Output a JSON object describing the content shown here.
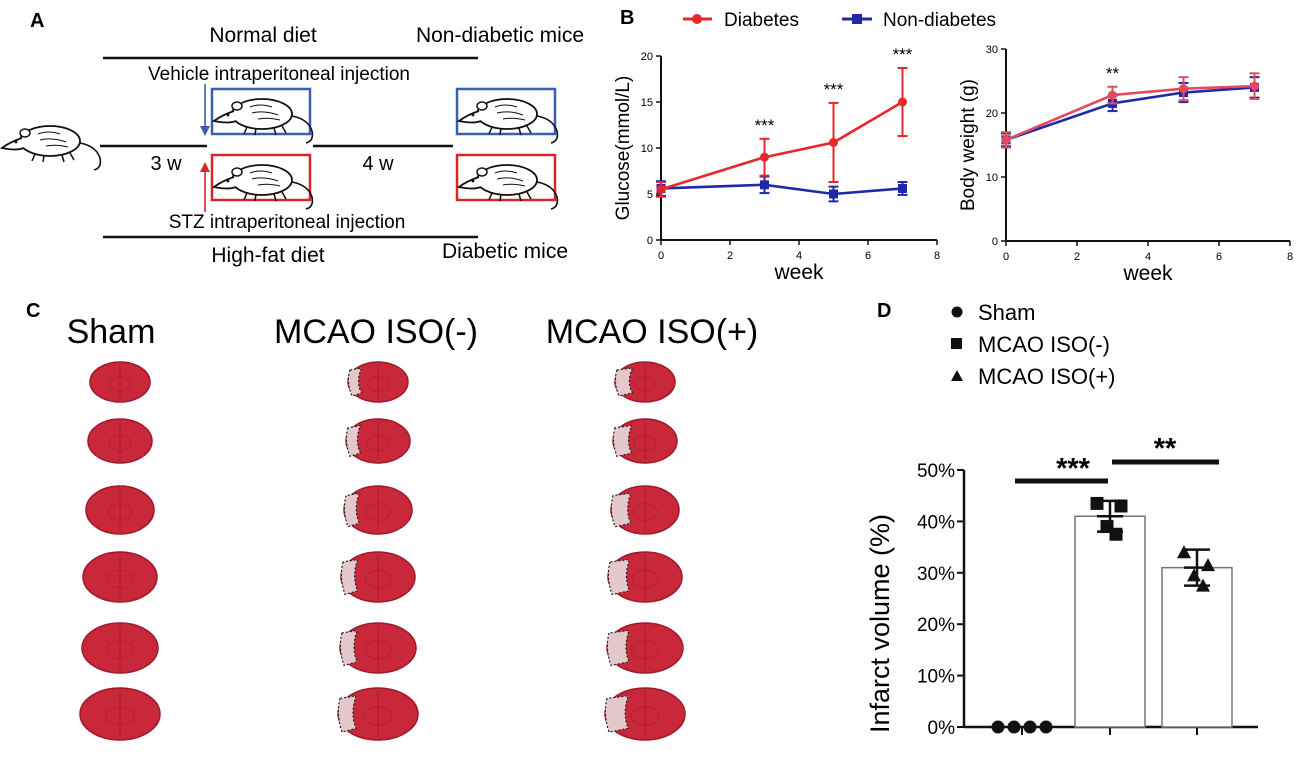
{
  "colors": {
    "diabetes": "#e8262b",
    "non_diabetes": "#1f2aa8",
    "box_blue": "#3a5fb0",
    "box_red": "#d7262b",
    "brain": "#c8283a",
    "brain_dark": "#9e1a2a",
    "lesion": "#e3c9cc"
  },
  "panel_a": {
    "label": "A",
    "top_diet": "Normal diet",
    "top_result": "Non-diabetic mice",
    "vehicle": "Vehicle intraperitoneal injection",
    "stz": "STZ intraperitoneal injection",
    "bottom_diet": "High-fat diet",
    "bottom_result": "Diabetic mice",
    "time1": "3 w",
    "time2": "4 w",
    "icon": "mouse-icon"
  },
  "panel_b": {
    "label": "B",
    "legend": [
      "Diabetes",
      "Non-diabetes"
    ]
  },
  "panel_c": {
    "label": "C",
    "columns": [
      "Sham",
      "MCAO ISO(-)",
      "MCAO ISO(+)"
    ],
    "icon": "brain-slice-icon"
  },
  "panel_d": {
    "label": "D",
    "legend": [
      "Sham",
      "MCAO ISO(-)",
      "MCAO ISO(+)"
    ],
    "sig": [
      "***",
      "**"
    ]
  },
  "chart_data": [
    {
      "type": "line",
      "title": "",
      "xlabel": "week",
      "ylabel": "Glucose(mmol/L)",
      "xlim": [
        0,
        8
      ],
      "ylim": [
        0,
        20
      ],
      "xticks": [
        "0",
        "2",
        "4",
        "6",
        "8"
      ],
      "yticks": [
        "0",
        "5",
        "10",
        "15",
        "20"
      ],
      "series": [
        {
          "name": "Diabetes",
          "x": [
            0,
            3,
            5,
            7
          ],
          "y": [
            5.5,
            9.0,
            10.6,
            15.0
          ],
          "err": [
            0.8,
            2.0,
            4.3,
            3.7
          ]
        },
        {
          "name": "Non-diabetes",
          "x": [
            0,
            3,
            5,
            7
          ],
          "y": [
            5.6,
            6.0,
            5.0,
            5.6
          ],
          "err": [
            0.8,
            0.9,
            0.8,
            0.7
          ]
        }
      ],
      "annotations": [
        {
          "x": 3,
          "label": "***"
        },
        {
          "x": 5,
          "label": "***"
        },
        {
          "x": 7,
          "label": "***"
        }
      ]
    },
    {
      "type": "line",
      "title": "",
      "xlabel": "week",
      "ylabel": "Body weight (g)",
      "xlim": [
        0,
        8
      ],
      "ylim": [
        0,
        30
      ],
      "xticks": [
        "0",
        "2",
        "4",
        "6",
        "8"
      ],
      "yticks": [
        "0",
        "10",
        "20",
        "30"
      ],
      "series": [
        {
          "name": "Diabetes",
          "x": [
            0,
            3,
            5,
            7
          ],
          "y": [
            15.8,
            22.8,
            23.8,
            24.2
          ],
          "err": [
            1.2,
            1.3,
            1.8,
            2.0
          ]
        },
        {
          "name": "Non-diabetes",
          "x": [
            0,
            3,
            5,
            7
          ],
          "y": [
            15.8,
            21.5,
            23.2,
            24.0
          ],
          "err": [
            1.0,
            1.2,
            1.5,
            1.6
          ]
        }
      ],
      "annotations": [
        {
          "x": 3,
          "label": "**"
        }
      ]
    },
    {
      "type": "bar",
      "title": "",
      "xlabel": "",
      "ylabel": "Infarct volume (%)",
      "ylim": [
        0,
        50
      ],
      "yticks": [
        "0%",
        "10%",
        "20%",
        "30%",
        "40%",
        "50%"
      ],
      "categories": [
        "Sham",
        "MCAO ISO(-)",
        "MCAO ISO(+)"
      ],
      "values": [
        0,
        41,
        31
      ],
      "err": [
        0,
        3,
        3.5
      ],
      "points": [
        [
          0,
          0,
          0,
          0
        ],
        [
          43.5,
          43,
          39,
          37.5
        ],
        [
          34,
          31.5,
          29.5,
          27.5
        ]
      ],
      "markers": [
        "circle",
        "square",
        "triangle"
      ],
      "significance": [
        {
          "between": [
            0,
            1
          ],
          "label": "***"
        },
        {
          "between": [
            1,
            2
          ],
          "label": "**"
        }
      ]
    }
  ]
}
